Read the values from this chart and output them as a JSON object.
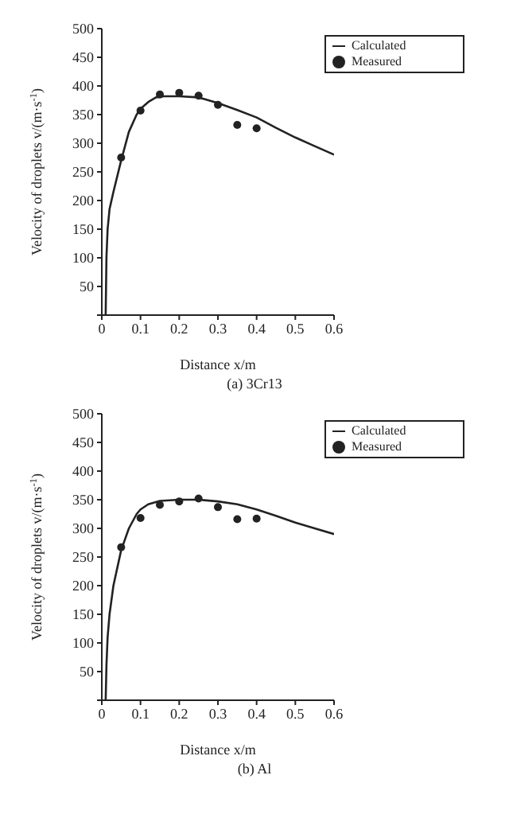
{
  "chart_data": [
    {
      "type": "line",
      "title": "(a) 3Cr13",
      "xlabel": "Distance x/m",
      "ylabel": "Velocity of droplets v/(m·s$^{-1}$)",
      "xlim": [
        0,
        0.6
      ],
      "xticks": [
        0,
        0.1,
        0.2,
        0.3,
        0.4,
        0.5,
        0.6
      ],
      "ylim": [
        0,
        500
      ],
      "yticks": [
        {
          "value": 0,
          "label": null
        },
        50,
        100,
        150,
        200,
        250,
        300,
        350,
        400,
        450,
        500
      ],
      "grid": false,
      "legend": "top right",
      "series": [
        {
          "name": "Calculated",
          "color": "#222222",
          "marker": "none",
          "x": [
            0.01,
            0.012,
            0.015,
            0.02,
            0.03,
            0.05,
            0.07,
            0.09,
            0.1,
            0.12,
            0.14,
            0.16,
            0.2,
            0.25,
            0.3,
            0.35,
            0.4,
            0.45,
            0.5,
            0.55,
            0.6
          ],
          "values": [
            0,
            100,
            150,
            185,
            215,
            270,
            320,
            350,
            360,
            372,
            380,
            382,
            382,
            380,
            370,
            358,
            345,
            327,
            310,
            295,
            280
          ]
        },
        {
          "name": "Measured",
          "type": "scatter",
          "color": "#222222",
          "marker": "circle",
          "x": [
            0.05,
            0.1,
            0.15,
            0.2,
            0.25,
            0.3,
            0.35,
            0.4
          ],
          "values": [
            275,
            357,
            385,
            388,
            383,
            367,
            332,
            326
          ]
        }
      ]
    },
    {
      "type": "line",
      "title": "(b) Al",
      "xlabel": "Distance x/m",
      "ylabel": "Velocity of droplets v/(m·s$^{-1}$)",
      "xlim": [
        0,
        0.6
      ],
      "xticks": [
        0,
        0.1,
        0.2,
        0.3,
        0.4,
        0.5,
        0.6
      ],
      "ylim": [
        0,
        500
      ],
      "yticks": [
        {
          "value": 0,
          "label": null
        },
        50,
        100,
        150,
        200,
        250,
        300,
        350,
        400,
        450,
        500
      ],
      "grid": false,
      "legend": "top right",
      "series": [
        {
          "name": "Calculated",
          "color": "#222222",
          "marker": "none",
          "x": [
            0.01,
            0.012,
            0.015,
            0.02,
            0.03,
            0.05,
            0.07,
            0.09,
            0.1,
            0.12,
            0.15,
            0.2,
            0.25,
            0.3,
            0.35,
            0.4,
            0.45,
            0.5,
            0.55,
            0.6
          ],
          "values": [
            0,
            60,
            110,
            150,
            200,
            262,
            300,
            325,
            333,
            342,
            348,
            350,
            350,
            347,
            342,
            333,
            322,
            310,
            300,
            290
          ]
        },
        {
          "name": "Measured",
          "type": "scatter",
          "color": "#222222",
          "marker": "circle",
          "x": [
            0.05,
            0.1,
            0.15,
            0.2,
            0.25,
            0.3,
            0.35,
            0.4
          ],
          "values": [
            267,
            318,
            341,
            347,
            352,
            337,
            316,
            317
          ]
        }
      ]
    }
  ]
}
